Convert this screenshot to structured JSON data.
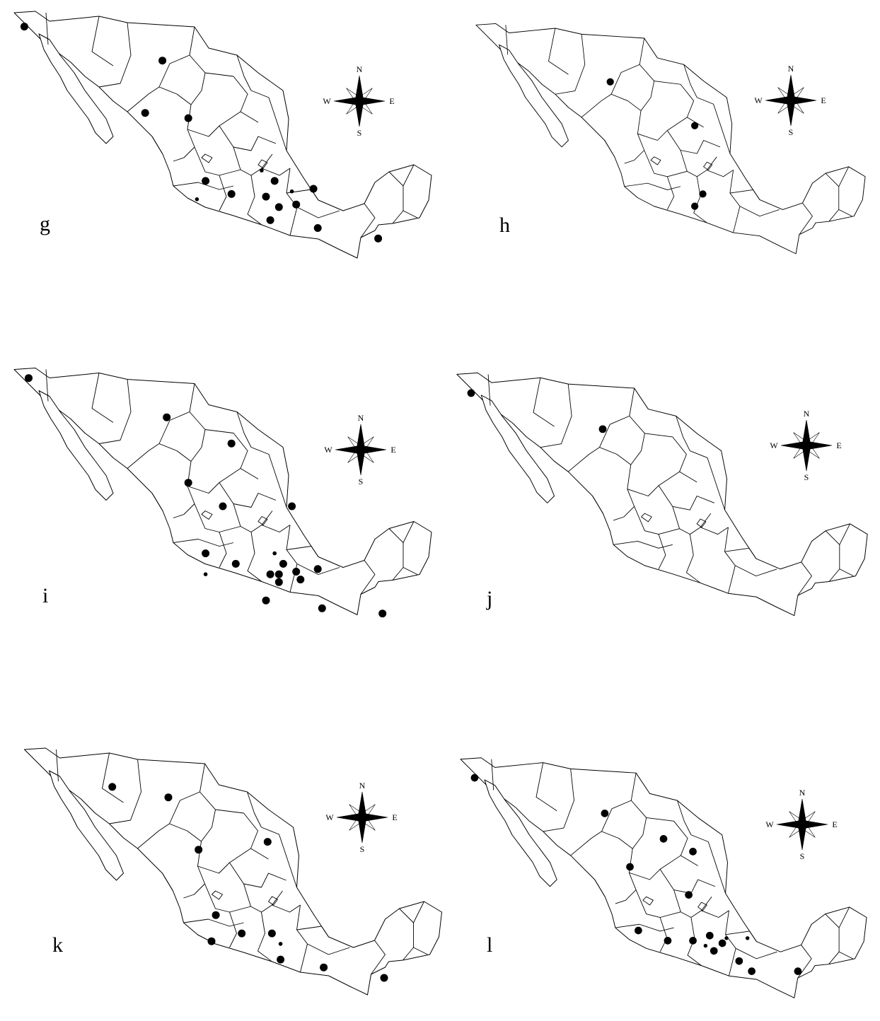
{
  "figure": {
    "panels": [
      {
        "id": "g",
        "label": "g",
        "compass": {
          "n": "N",
          "s": "S",
          "e": "E",
          "w": "W"
        },
        "points": [
          [
            0.04,
            0.08,
            8
          ],
          [
            0.36,
            0.21,
            8
          ],
          [
            0.32,
            0.41,
            8
          ],
          [
            0.42,
            0.43,
            8
          ],
          [
            0.46,
            0.67,
            8
          ],
          [
            0.52,
            0.72,
            8
          ],
          [
            0.59,
            0.63,
            4
          ],
          [
            0.62,
            0.67,
            8
          ],
          [
            0.6,
            0.73,
            8
          ],
          [
            0.63,
            0.77,
            8
          ],
          [
            0.67,
            0.76,
            8
          ],
          [
            0.66,
            0.71,
            4
          ],
          [
            0.71,
            0.7,
            8
          ],
          [
            0.44,
            0.74,
            4
          ],
          [
            0.61,
            0.82,
            8
          ],
          [
            0.72,
            0.85,
            8
          ],
          [
            0.86,
            0.89,
            8
          ]
        ]
      },
      {
        "id": "h",
        "label": "h",
        "compass": {
          "n": "N",
          "s": "S",
          "e": "E",
          "w": "W"
        },
        "points": [
          [
            0.35,
            0.26,
            8
          ],
          [
            0.56,
            0.44,
            8
          ],
          [
            0.58,
            0.72,
            8
          ],
          [
            0.56,
            0.77,
            8
          ]
        ]
      },
      {
        "id": "i",
        "label": "i",
        "compass": {
          "n": "N",
          "s": "S",
          "e": "E",
          "w": "W"
        },
        "points": [
          [
            0.05,
            0.06,
            8
          ],
          [
            0.37,
            0.21,
            8
          ],
          [
            0.52,
            0.31,
            8
          ],
          [
            0.42,
            0.46,
            8
          ],
          [
            0.5,
            0.55,
            8
          ],
          [
            0.66,
            0.55,
            8
          ],
          [
            0.46,
            0.73,
            8
          ],
          [
            0.46,
            0.81,
            4
          ],
          [
            0.53,
            0.77,
            8
          ],
          [
            0.62,
            0.73,
            4
          ],
          [
            0.64,
            0.77,
            8
          ],
          [
            0.61,
            0.81,
            8
          ],
          [
            0.63,
            0.81,
            8
          ],
          [
            0.63,
            0.84,
            8
          ],
          [
            0.67,
            0.8,
            8
          ],
          [
            0.68,
            0.83,
            8
          ],
          [
            0.72,
            0.79,
            8
          ],
          [
            0.6,
            0.91,
            8
          ],
          [
            0.73,
            0.94,
            8
          ],
          [
            0.87,
            0.96,
            8
          ]
        ]
      },
      {
        "id": "j",
        "label": "j",
        "compass": {
          "n": "N",
          "s": "S",
          "e": "E",
          "w": "W"
        },
        "points": [
          [
            0.05,
            0.1,
            8
          ],
          [
            0.36,
            0.24,
            8
          ]
        ]
      },
      {
        "id": "k",
        "label": "k",
        "compass": {
          "n": "N",
          "s": "S",
          "e": "E",
          "w": "W"
        },
        "points": [
          [
            0.22,
            0.17,
            8
          ],
          [
            0.35,
            0.21,
            8
          ],
          [
            0.42,
            0.41,
            8
          ],
          [
            0.58,
            0.38,
            8
          ],
          [
            0.46,
            0.66,
            8
          ],
          [
            0.45,
            0.76,
            8
          ],
          [
            0.52,
            0.73,
            8
          ],
          [
            0.59,
            0.73,
            8
          ],
          [
            0.61,
            0.77,
            4
          ],
          [
            0.61,
            0.83,
            8
          ],
          [
            0.71,
            0.86,
            8
          ],
          [
            0.85,
            0.9,
            8
          ]
        ]
      },
      {
        "id": "l",
        "label": "l",
        "compass": {
          "n": "N",
          "s": "S",
          "e": "E",
          "w": "W"
        },
        "points": [
          [
            0.05,
            0.1,
            8
          ],
          [
            0.36,
            0.24,
            8
          ],
          [
            0.5,
            0.34,
            8
          ],
          [
            0.57,
            0.39,
            8
          ],
          [
            0.42,
            0.45,
            8
          ],
          [
            0.56,
            0.56,
            8
          ],
          [
            0.44,
            0.7,
            8
          ],
          [
            0.51,
            0.74,
            8
          ],
          [
            0.57,
            0.74,
            8
          ],
          [
            0.6,
            0.76,
            4
          ],
          [
            0.61,
            0.72,
            8
          ],
          [
            0.62,
            0.78,
            8
          ],
          [
            0.64,
            0.75,
            8
          ],
          [
            0.65,
            0.73,
            4
          ],
          [
            0.7,
            0.73,
            4
          ],
          [
            0.68,
            0.82,
            8
          ],
          [
            0.82,
            0.86,
            8
          ],
          [
            0.71,
            0.86,
            8
          ]
        ]
      }
    ]
  }
}
